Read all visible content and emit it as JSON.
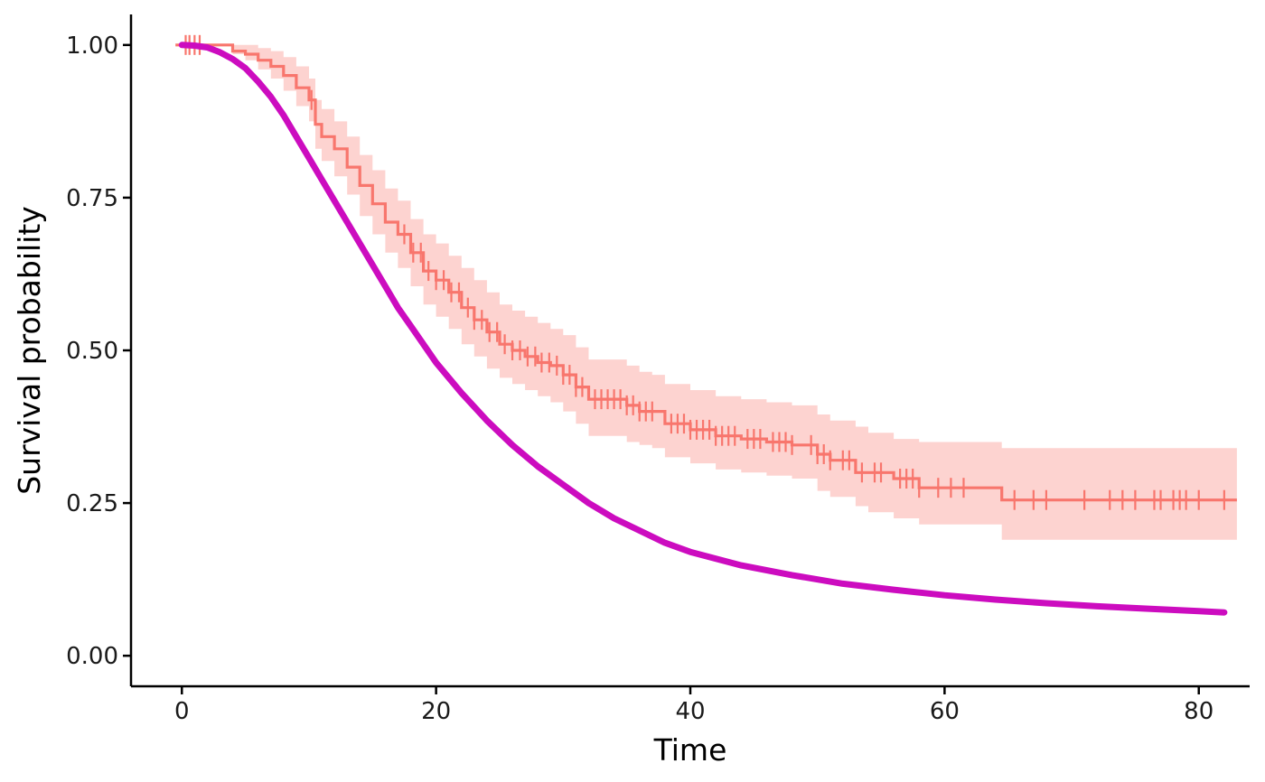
{
  "chart_data": {
    "type": "line",
    "title": "",
    "xlabel": "Time",
    "ylabel": "Survival probability",
    "xlim": [
      -4,
      84
    ],
    "ylim": [
      -0.05,
      1.05
    ],
    "x_ticks": [
      0,
      20,
      40,
      60,
      80
    ],
    "x_tick_labels": [
      "0",
      "20",
      "40",
      "60",
      "80"
    ],
    "y_ticks": [
      0,
      0.25,
      0.5,
      0.75,
      1.0
    ],
    "y_tick_labels": [
      "0.00",
      "0.25",
      "0.50",
      "0.75",
      "1.00"
    ],
    "grid": false,
    "legend": "none",
    "colors": {
      "km": "#F8766D",
      "km_ci": "#FDD3D0",
      "fitted": "#CC0CBF"
    },
    "series": [
      {
        "kind": "kaplan-meier-step",
        "x": [
          -0.5,
          4,
          5,
          6,
          7,
          8,
          9,
          10,
          10.5,
          11,
          12,
          13,
          14,
          15,
          16,
          17,
          18,
          19,
          20,
          21,
          22,
          23,
          24,
          25,
          26,
          27,
          28,
          29,
          30,
          31,
          32,
          33,
          35,
          36,
          37,
          38,
          40,
          42,
          44,
          46,
          48,
          50,
          51,
          53,
          54,
          56,
          58,
          61,
          64.5,
          66,
          70,
          75,
          80,
          82,
          83
        ],
        "y": [
          1.0,
          0.99,
          0.985,
          0.975,
          0.965,
          0.95,
          0.93,
          0.91,
          0.87,
          0.85,
          0.83,
          0.8,
          0.77,
          0.74,
          0.71,
          0.69,
          0.66,
          0.63,
          0.615,
          0.595,
          0.57,
          0.55,
          0.53,
          0.51,
          0.5,
          0.49,
          0.48,
          0.475,
          0.46,
          0.44,
          0.42,
          0.42,
          0.41,
          0.4,
          0.4,
          0.38,
          0.37,
          0.36,
          0.355,
          0.35,
          0.345,
          0.33,
          0.32,
          0.3,
          0.3,
          0.29,
          0.275,
          0.275,
          0.255,
          0.255,
          0.255,
          0.255,
          0.255,
          0.255,
          0.255
        ],
        "ci_lower": [
          1.0,
          0.985,
          0.975,
          0.96,
          0.945,
          0.925,
          0.9,
          0.875,
          0.83,
          0.81,
          0.785,
          0.755,
          0.72,
          0.69,
          0.66,
          0.635,
          0.605,
          0.575,
          0.555,
          0.535,
          0.51,
          0.49,
          0.47,
          0.455,
          0.445,
          0.435,
          0.425,
          0.415,
          0.4,
          0.38,
          0.36,
          0.36,
          0.35,
          0.345,
          0.34,
          0.325,
          0.315,
          0.305,
          0.3,
          0.295,
          0.29,
          0.27,
          0.26,
          0.245,
          0.235,
          0.225,
          0.215,
          0.215,
          0.19,
          0.19,
          0.19,
          0.19,
          0.19,
          0.19,
          0.19
        ],
        "ci_upper": [
          1.0,
          1.0,
          1.0,
          0.995,
          0.99,
          0.98,
          0.965,
          0.945,
          0.91,
          0.895,
          0.875,
          0.85,
          0.82,
          0.795,
          0.765,
          0.745,
          0.715,
          0.69,
          0.675,
          0.655,
          0.635,
          0.615,
          0.595,
          0.575,
          0.565,
          0.555,
          0.545,
          0.535,
          0.525,
          0.505,
          0.485,
          0.485,
          0.475,
          0.465,
          0.46,
          0.445,
          0.435,
          0.425,
          0.42,
          0.415,
          0.41,
          0.395,
          0.385,
          0.375,
          0.365,
          0.355,
          0.35,
          0.35,
          0.34,
          0.34,
          0.34,
          0.34,
          0.34,
          0.34,
          0.34
        ],
        "censor_times": [
          0.3,
          0.6,
          1.0,
          1.4,
          10.2,
          17.5,
          18.2,
          18.8,
          19.4,
          20.0,
          20.6,
          21.2,
          21.8,
          22.5,
          23.0,
          23.6,
          24.2,
          24.8,
          25.4,
          26.0,
          26.6,
          27.2,
          27.8,
          28.3,
          28.9,
          29.5,
          30.0,
          30.5,
          31.0,
          31.5,
          32.5,
          33.0,
          33.5,
          34.0,
          34.5,
          35.0,
          35.5,
          36.0,
          36.5,
          37.0,
          38.5,
          39.0,
          39.5,
          40.0,
          40.5,
          41.0,
          41.5,
          42.0,
          42.5,
          43.0,
          43.5,
          44.5,
          45.0,
          45.5,
          46.5,
          47.0,
          47.5,
          48.0,
          49.5,
          50.0,
          50.5,
          51.0,
          52.0,
          52.5,
          53.5,
          54.5,
          55.0,
          56.5,
          57.0,
          57.5,
          58.0,
          59.5,
          60.5,
          61.5,
          65.5,
          67.0,
          68.0,
          71.0,
          73.0,
          74.0,
          75.0,
          76.5,
          77.0,
          78.0,
          78.5,
          79.0,
          80.0,
          82.0
        ]
      },
      {
        "kind": "fitted-curve",
        "x": [
          0,
          1,
          2,
          3,
          4,
          5,
          6,
          7,
          8,
          9,
          10,
          11,
          12,
          13,
          14,
          15,
          16,
          17,
          18,
          19,
          20,
          22,
          24,
          26,
          28,
          30,
          32,
          34,
          36,
          38,
          40,
          44,
          48,
          52,
          56,
          60,
          64,
          68,
          72,
          76,
          80,
          82
        ],
        "y": [
          1.0,
          0.999,
          0.996,
          0.988,
          0.977,
          0.962,
          0.94,
          0.915,
          0.885,
          0.85,
          0.815,
          0.78,
          0.745,
          0.71,
          0.675,
          0.64,
          0.605,
          0.57,
          0.54,
          0.51,
          0.48,
          0.43,
          0.385,
          0.345,
          0.31,
          0.28,
          0.25,
          0.225,
          0.205,
          0.185,
          0.17,
          0.148,
          0.132,
          0.118,
          0.108,
          0.099,
          0.092,
          0.086,
          0.081,
          0.077,
          0.073,
          0.071
        ]
      }
    ]
  }
}
